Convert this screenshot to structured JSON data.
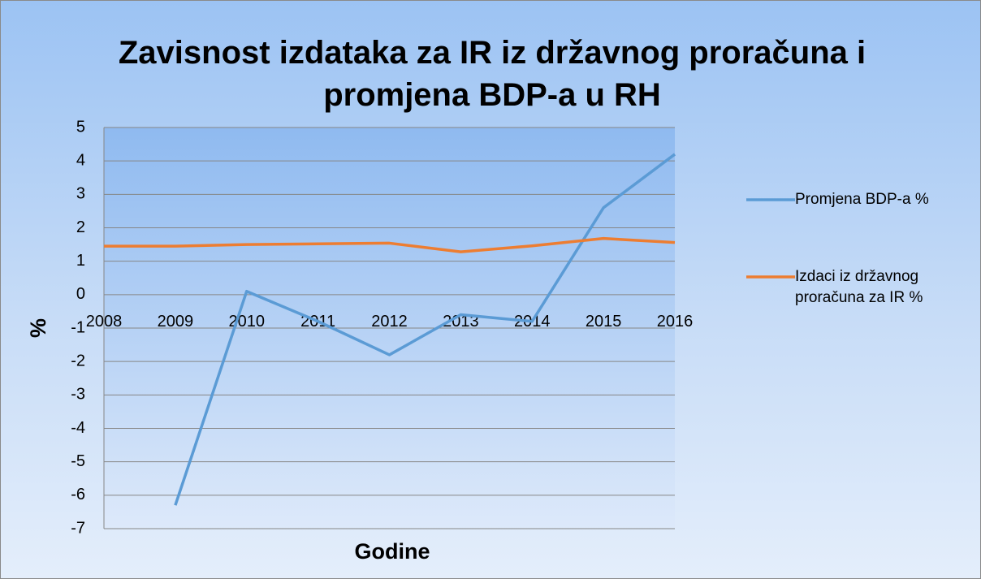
{
  "chart_data": {
    "type": "line",
    "title": "Zavisnost izdataka za IR iz državnog proračuna i promjena BDP-a u RH",
    "x_label": "Godine",
    "y_label": "%",
    "categories": [
      "2008",
      "2009",
      "2010",
      "2011",
      "2012",
      "2013",
      "2014",
      "2015",
      "2016"
    ],
    "series": [
      {
        "name": "Promjena BDP-a %",
        "color": "#5b9bd5",
        "values": [
          null,
          -6.3,
          0.1,
          -0.8,
          -1.8,
          -0.6,
          -0.8,
          2.6,
          4.2
        ]
      },
      {
        "name": "Izdaci iz državnog proračuna za IR %",
        "color": "#ed7d31",
        "values": [
          1.45,
          1.45,
          1.5,
          1.52,
          1.54,
          1.28,
          1.46,
          1.68,
          1.56
        ]
      }
    ],
    "ylim": [
      -7,
      5
    ],
    "yticks": [
      -7,
      -6,
      -5,
      -4,
      -3,
      -2,
      -1,
      0,
      1,
      2,
      3,
      4,
      5
    ],
    "grid": true,
    "legend": "right"
  }
}
